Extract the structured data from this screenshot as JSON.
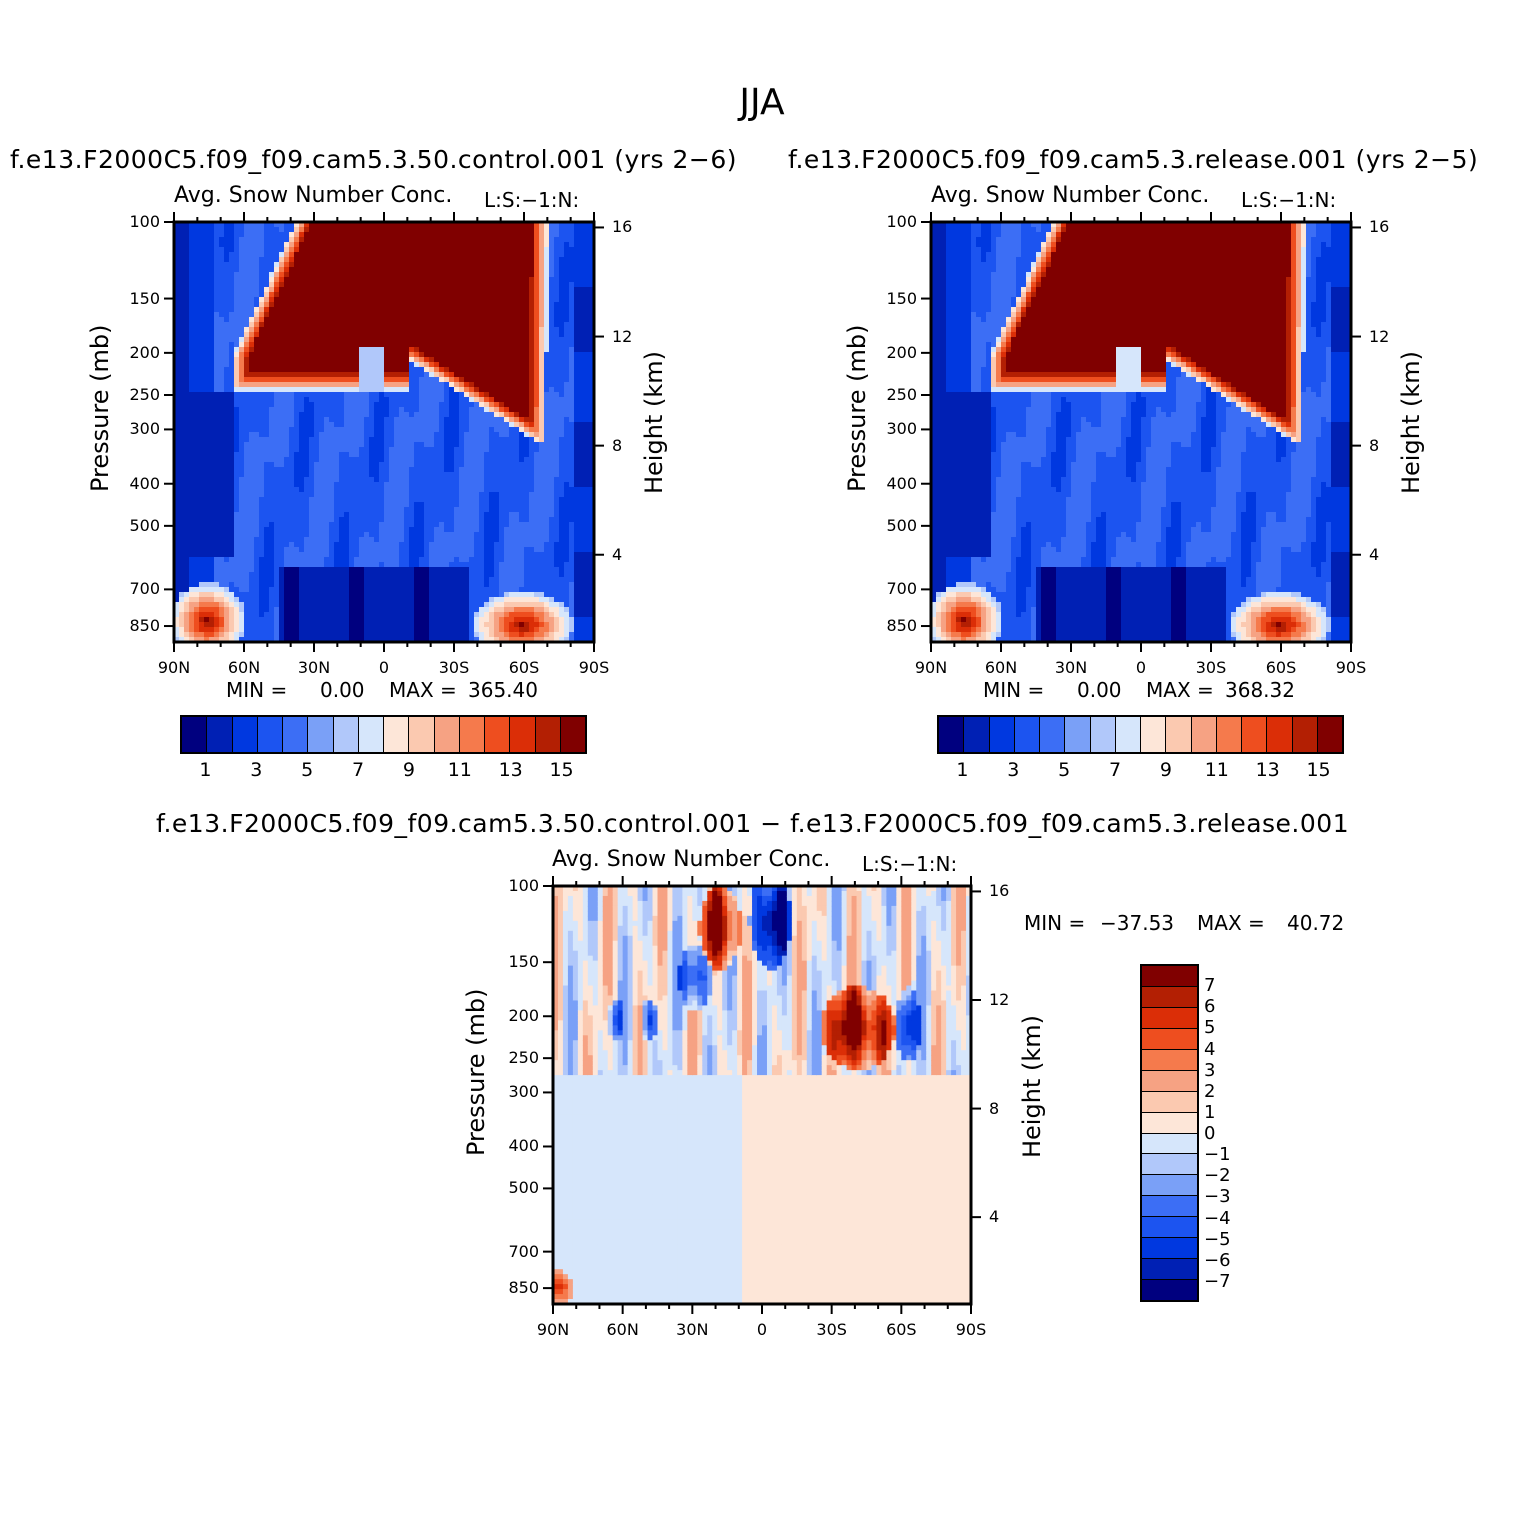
{
  "title": "JJA",
  "colors": {
    "abs_levels": [
      "#00007f",
      "#0020b4",
      "#0038e0",
      "#1c54f0",
      "#3c6ef5",
      "#7aa0f7",
      "#b1c8fa",
      "#d6e6fb",
      "#fde6d8",
      "#fbc9b0",
      "#f6a283",
      "#f57a4c",
      "#ee4e1f",
      "#db2e07",
      "#b31f03",
      "#800000"
    ],
    "diff_levels": [
      "#00007f",
      "#0020b4",
      "#0038e0",
      "#1c54f0",
      "#3c6ef5",
      "#7aa0f7",
      "#b1c8fa",
      "#d6e6fb",
      "#fde6d8",
      "#fbc9b0",
      "#f6a283",
      "#f57a4c",
      "#ee4e1f",
      "#db2e07",
      "#b31f03",
      "#800000"
    ]
  },
  "panels": [
    {
      "case_title": "f.e13.F2000C5.f09_f09.cam5.3.50.control.001 (yrs 2−6)",
      "var_title": "Avg. Snow Number Conc.",
      "units_label": "L:S:−1:N:",
      "min_label": "MIN =",
      "min_value": "0.00",
      "max_label": "MAX =",
      "max_value": "365.40",
      "colorbar_labels": [
        "1",
        "3",
        "5",
        "7",
        "9",
        "11",
        "13",
        "15"
      ]
    },
    {
      "case_title": "f.e13.F2000C5.f09_f09.cam5.3.release.001 (yrs 2−5)",
      "var_title": "Avg. Snow Number Conc.",
      "units_label": "L:S:−1:N:",
      "min_label": "MIN =",
      "min_value": "0.00",
      "max_label": "MAX =",
      "max_value": "368.32",
      "colorbar_labels": [
        "1",
        "3",
        "5",
        "7",
        "9",
        "11",
        "13",
        "15"
      ]
    },
    {
      "case_title": "f.e13.F2000C5.f09_f09.cam5.3.50.control.001 − f.e13.F2000C5.f09_f09.cam5.3.release.001",
      "var_title": "Avg. Snow Number Conc.",
      "units_label": "L:S:−1:N:",
      "min_label": "MIN =",
      "min_value": "−37.53",
      "max_label": "MAX =",
      "max_value": "40.72",
      "colorbar_labels": [
        "7",
        "6",
        "5",
        "4",
        "3",
        "2",
        "1",
        "0",
        "−1",
        "−2",
        "−3",
        "−4",
        "−5",
        "−6",
        "−7"
      ]
    }
  ],
  "axes": {
    "ylabel": "Pressure (mb)",
    "y2label": "Height (km)",
    "pressure_ticks": [
      "100",
      "150",
      "200",
      "250",
      "300",
      "400",
      "500",
      "700",
      "850"
    ],
    "height_ticks": [
      "16",
      "12",
      "8",
      "4"
    ],
    "lat_ticks": [
      "90N",
      "60N",
      "30N",
      "0",
      "30S",
      "60S",
      "90S"
    ]
  },
  "chart_data": [
    {
      "type": "heatmap",
      "title": "Avg. Snow Number Conc.",
      "xlabel": "",
      "ylabel": "Pressure (mb)",
      "y2label": "Height (km)",
      "x_ticks": [
        "90N",
        "60N",
        "30N",
        "0",
        "30S",
        "60S",
        "90S"
      ],
      "y_ticks": [
        100,
        150,
        200,
        250,
        300,
        400,
        500,
        700,
        850
      ],
      "y2_ticks": [
        16,
        12,
        8,
        4
      ],
      "y_scale": "log",
      "ylim": [
        925,
        100
      ],
      "levels": [
        1,
        2,
        3,
        4,
        5,
        6,
        7,
        8,
        9,
        10,
        11,
        12,
        13,
        14,
        15
      ],
      "min": 0.0,
      "max": 365.4,
      "features": [
        {
          "lat": [
            -20,
            60
          ],
          "p": [
            100,
            250
          ],
          "value": ">15",
          "note": "upper-troposphere maximum"
        },
        {
          "lat": [
            -70,
            -20
          ],
          "p": [
            100,
            330
          ],
          "value": ">15"
        },
        {
          "lat": [
            70,
            90
          ],
          "p": [
            750,
            925
          ],
          "value": ">15"
        },
        {
          "lat": [
            -75,
            -45
          ],
          "p": [
            780,
            925
          ],
          "value": ">15"
        },
        {
          "lat": [
            -20,
            40
          ],
          "p": [
            650,
            925
          ],
          "value": "<1"
        }
      ]
    },
    {
      "type": "heatmap",
      "title": "Avg. Snow Number Conc.",
      "xlabel": "",
      "ylabel": "Pressure (mb)",
      "y2label": "Height (km)",
      "x_ticks": [
        "90N",
        "60N",
        "30N",
        "0",
        "30S",
        "60S",
        "90S"
      ],
      "y_ticks": [
        100,
        150,
        200,
        250,
        300,
        400,
        500,
        700,
        850
      ],
      "y2_ticks": [
        16,
        12,
        8,
        4
      ],
      "y_scale": "log",
      "ylim": [
        925,
        100
      ],
      "levels": [
        1,
        2,
        3,
        4,
        5,
        6,
        7,
        8,
        9,
        10,
        11,
        12,
        13,
        14,
        15
      ],
      "min": 0.0,
      "max": 368.32,
      "features": [
        {
          "lat": [
            -20,
            60
          ],
          "p": [
            100,
            250
          ],
          "value": ">15"
        },
        {
          "lat": [
            -75,
            -20
          ],
          "p": [
            100,
            330
          ],
          "value": ">15"
        },
        {
          "lat": [
            70,
            90
          ],
          "p": [
            750,
            925
          ],
          "value": ">15"
        },
        {
          "lat": [
            -75,
            -45
          ],
          "p": [
            780,
            925
          ],
          "value": ">15"
        },
        {
          "lat": [
            -20,
            40
          ],
          "p": [
            650,
            925
          ],
          "value": "<1"
        }
      ]
    },
    {
      "type": "heatmap",
      "title": "Avg. Snow Number Conc.",
      "xlabel": "",
      "ylabel": "Pressure (mb)",
      "y2label": "Height (km)",
      "x_ticks": [
        "90N",
        "60N",
        "30N",
        "0",
        "30S",
        "60S",
        "90S"
      ],
      "y_ticks": [
        100,
        150,
        200,
        250,
        300,
        400,
        500,
        700,
        850
      ],
      "y2_ticks": [
        16,
        12,
        8,
        4
      ],
      "y_scale": "log",
      "ylim": [
        925,
        100
      ],
      "levels": [
        -7,
        -6,
        -5,
        -4,
        -3,
        -2,
        -1,
        0,
        1,
        2,
        3,
        4,
        5,
        6,
        7
      ],
      "min": -37.53,
      "max": 40.72,
      "features": [
        {
          "lat": [
            -55,
            -25
          ],
          "p": [
            160,
            260
          ],
          "value": ">7"
        },
        {
          "lat": [
            0,
            12
          ],
          "p": [
            100,
            180
          ],
          "value": "<-7"
        },
        {
          "lat": [
            12,
            35
          ],
          "p": [
            100,
            180
          ],
          "value": ">7"
        },
        {
          "lat": [
            -65,
            -58
          ],
          "p": [
            170,
            260
          ],
          "value": "<-7"
        },
        {
          "lat": [
            90,
            -90
          ],
          "p": [
            300,
            925
          ],
          "value": "-1 to 1"
        }
      ]
    }
  ]
}
